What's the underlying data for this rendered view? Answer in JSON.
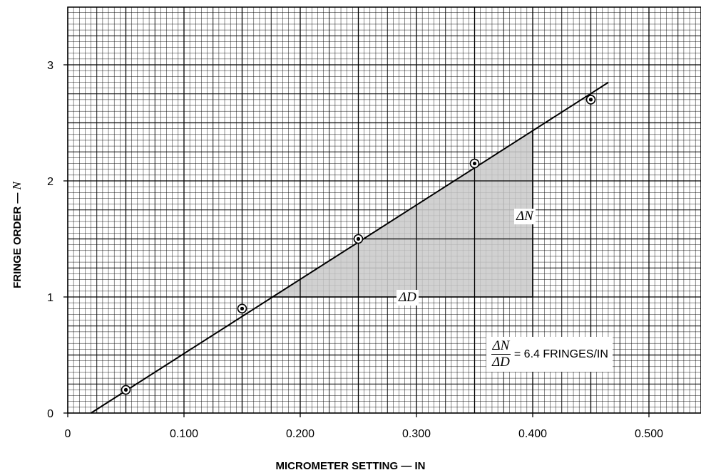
{
  "chart_data": {
    "type": "scatter",
    "title": "",
    "xlabel": "MICROMETER SETTING — IN",
    "ylabel_text": "FRINGE ORDER —",
    "ylabel_var": "N",
    "xlim": [
      0,
      0.55
    ],
    "ylim": [
      0,
      3.5
    ],
    "x_ticks": [
      0,
      0.1,
      0.2,
      0.3,
      0.4,
      0.5
    ],
    "x_tick_labels": [
      "0",
      "0.100",
      "0.200",
      "0.300",
      "0.400",
      "0.500"
    ],
    "y_ticks": [
      0,
      1,
      2,
      3
    ],
    "y_tick_labels": [
      "0",
      "1",
      "2",
      "3"
    ],
    "grid": true,
    "points": [
      {
        "x": 0.05,
        "y": 0.2
      },
      {
        "x": 0.15,
        "y": 0.9
      },
      {
        "x": 0.25,
        "y": 1.5
      },
      {
        "x": 0.35,
        "y": 2.15
      },
      {
        "x": 0.45,
        "y": 2.7
      }
    ],
    "fit_line": {
      "x_start": 0.02,
      "x_end": 0.465,
      "slope": 6.4
    },
    "shaded_triangle": {
      "x_from": 0.175,
      "x_to": 0.4,
      "y_base": 1.0
    },
    "annotations": {
      "delta_n": "ΔN",
      "delta_d": "ΔD",
      "formula_num": "ΔN",
      "formula_den": "ΔD",
      "formula_rest": "= 6.4 FRINGES/IN"
    }
  }
}
